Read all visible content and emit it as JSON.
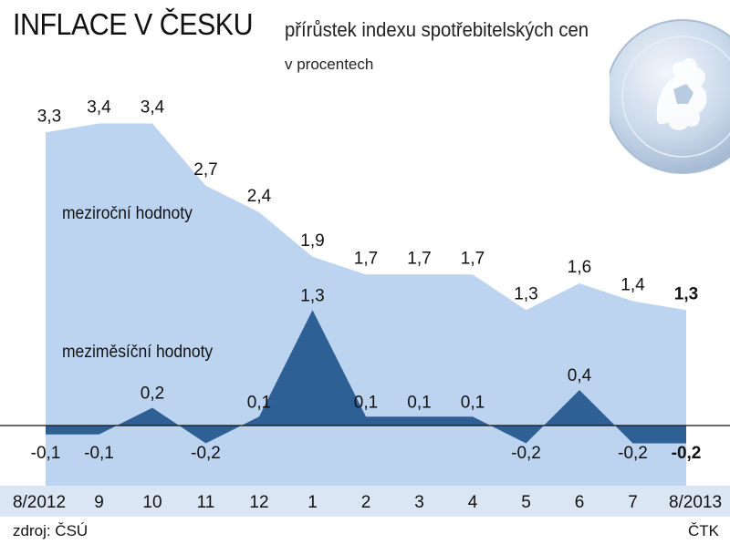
{
  "title": "INFLACE V ČESKU",
  "subtitle": "přírůstek indexu spotřebitelských cen",
  "unit_note": "v procentech",
  "source": "zdroj: ČSÚ",
  "agency": "ČTK",
  "colors": {
    "yoy_fill": "#bcd4ef",
    "mom_fill": "#2e5f95",
    "baseline": "#111111",
    "footer_band": "#dbe6f4"
  },
  "chart_data": {
    "type": "area",
    "categories": [
      "8/2012",
      "9",
      "10",
      "11",
      "12",
      "1",
      "2",
      "3",
      "4",
      "5",
      "6",
      "7",
      "8/2013"
    ],
    "series": [
      {
        "name": "meziroční hodnoty",
        "values": [
          3.3,
          3.4,
          3.4,
          2.7,
          2.4,
          1.9,
          1.7,
          1.7,
          1.7,
          1.3,
          1.6,
          1.4,
          1.3
        ],
        "labels": [
          "3,3",
          "3,4",
          "3,4",
          "2,7",
          "2,4",
          "1,9",
          "1,7",
          "1,7",
          "1,7",
          "1,3",
          "1,6",
          "1,4",
          "1,3"
        ]
      },
      {
        "name": "meziměsíční hodnoty",
        "values": [
          -0.1,
          -0.1,
          0.2,
          -0.2,
          0.1,
          1.3,
          0.1,
          0.1,
          0.1,
          -0.2,
          0.4,
          -0.2,
          -0.2
        ],
        "labels": [
          "-0,1",
          "-0,1",
          "0,2",
          "-0,2",
          "0,1",
          "1,3",
          "0,1",
          "0,1",
          "0,1",
          "-0,2",
          "0,4",
          "-0,2",
          "-0,2"
        ]
      }
    ],
    "grid": false,
    "legend": "inline labels"
  }
}
